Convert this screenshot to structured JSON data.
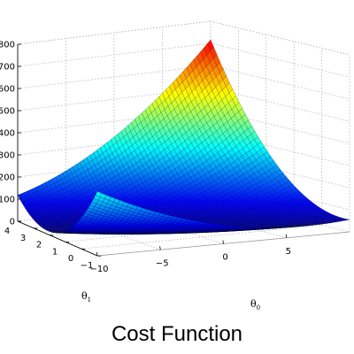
{
  "caption": "Cost Function",
  "chart_data": {
    "type": "surface",
    "title": "",
    "xlabel": "θ",
    "xlabel_sub": "0",
    "ylabel": "θ",
    "ylabel_sub": "1",
    "zlabel": "",
    "x_ticks": [
      -10,
      -5,
      0,
      5
    ],
    "y_ticks": [
      -1,
      0,
      1,
      2,
      3,
      4
    ],
    "z_ticks": [
      0,
      100,
      200,
      300,
      400,
      500,
      600,
      700,
      800
    ],
    "xlim": [
      -10,
      10
    ],
    "ylim": [
      -1,
      4
    ],
    "zlim": [
      0,
      800
    ],
    "grid": true,
    "colormap": "jet",
    "colormap_stops": [
      "#00008f",
      "#0000ff",
      "#00ffff",
      "#ffff00",
      "#ff0000",
      "#800000"
    ],
    "corner_values": [
      {
        "theta0": -10,
        "theta1": -1,
        "cost": 60
      },
      {
        "theta0": 10,
        "theta1": -1,
        "cost": 5
      },
      {
        "theta0": 10,
        "theta1": 4,
        "cost": 800
      },
      {
        "theta0": -10,
        "theta1": 4,
        "cost": 200
      }
    ],
    "minimum": {
      "theta0": -3.6,
      "theta1": 1.17,
      "cost": 4.5
    }
  }
}
